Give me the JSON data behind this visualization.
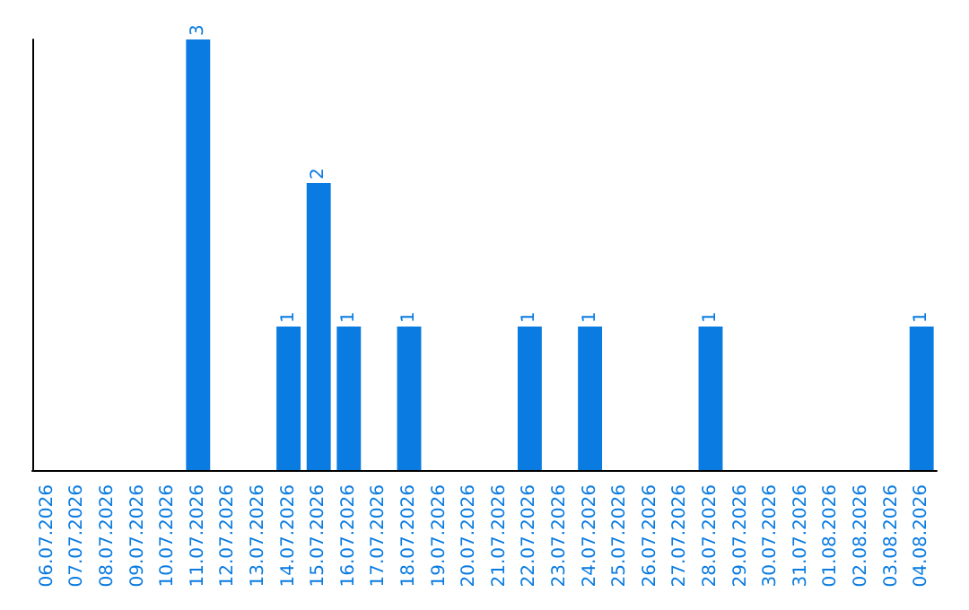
{
  "chart_data": {
    "type": "bar",
    "categories": [
      "06.07.2026",
      "07.07.2026",
      "08.07.2026",
      "09.07.2026",
      "10.07.2026",
      "11.07.2026",
      "12.07.2026",
      "13.07.2026",
      "14.07.2026",
      "15.07.2026",
      "16.07.2026",
      "17.07.2026",
      "18.07.2026",
      "19.07.2026",
      "20.07.2026",
      "21.07.2026",
      "22.07.2026",
      "23.07.2026",
      "24.07.2026",
      "25.07.2026",
      "26.07.2026",
      "27.07.2026",
      "28.07.2026",
      "29.07.2026",
      "30.07.2026",
      "31.07.2026",
      "01.08.2026",
      "02.08.2026",
      "03.08.2026",
      "04.08.2026"
    ],
    "values": [
      0,
      0,
      0,
      0,
      0,
      3,
      0,
      0,
      1,
      2,
      1,
      0,
      1,
      0,
      0,
      0,
      1,
      0,
      1,
      0,
      0,
      0,
      1,
      0,
      0,
      0,
      0,
      0,
      0,
      1
    ],
    "value_labels": [
      null,
      null,
      null,
      null,
      null,
      "3",
      null,
      null,
      "1",
      "2",
      "1",
      null,
      "1",
      null,
      null,
      null,
      "1",
      null,
      "1",
      null,
      null,
      null,
      "1",
      null,
      null,
      null,
      null,
      null,
      null,
      "1"
    ],
    "color": "#0a7be0",
    "tick_labels": "x",
    "grid": false
  }
}
